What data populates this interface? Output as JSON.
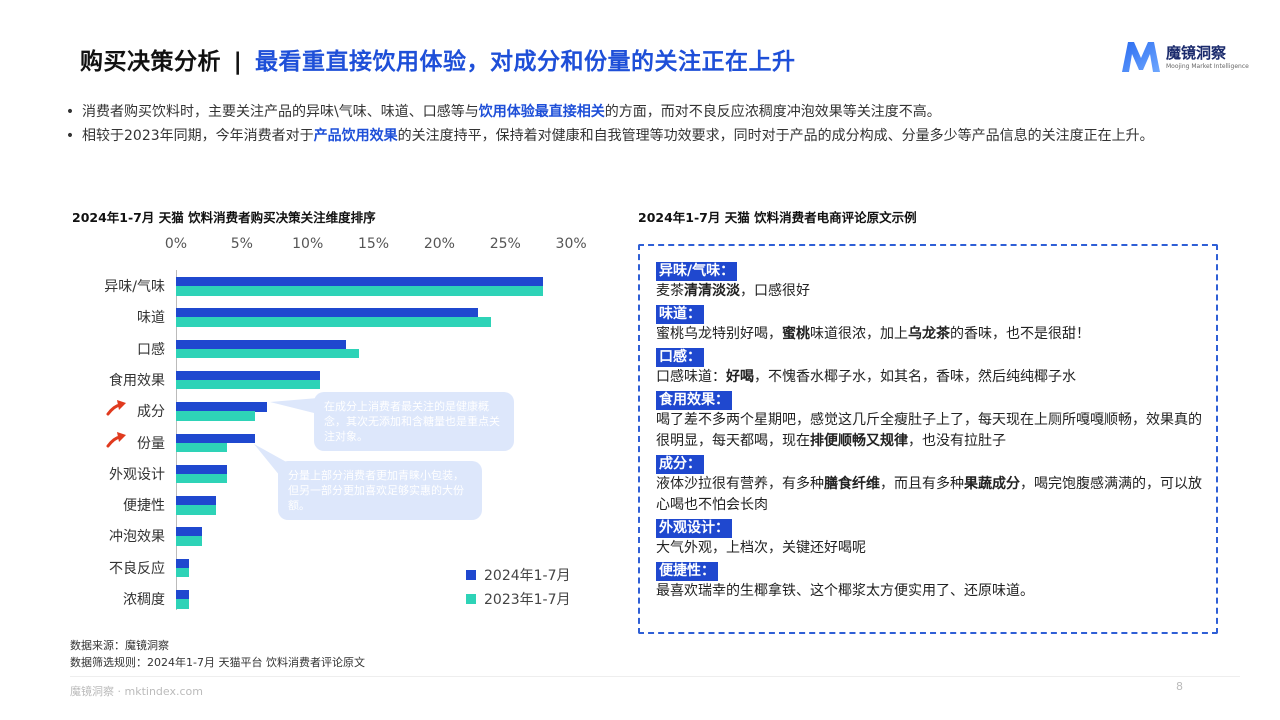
{
  "header": {
    "title_main": "购买决策分析",
    "title_sep": "|",
    "title_highlight": "最看重直接饮用体验，对成分和份量的关注正在上升"
  },
  "logo": {
    "name": "魔镜洞察",
    "slogan": "Moojing Market Intelligence"
  },
  "bullets": [
    {
      "pre": "消费者购买饮料时，主要关注产品的异味\\气味、味道、口感等与",
      "highlight": "饮用体验最直接相关",
      "post": "的方面，而对不良反应浓稠度冲泡效果等关注度不高。"
    },
    {
      "pre": "相较于2023年同期，今年消费者对于",
      "highlight": "产品饮用效果",
      "post": "的关注度持平，保持着对健康和自我管理等功效要求，同时对于产品的成分构成、分量多少等产品信息的关注度正在上升。"
    }
  ],
  "left_panel": {
    "subtitle": "2024年1-7月 天猫 饮料消费者购买决策关注维度排序",
    "callouts": [
      "在成分上消费者最关注的是健康概念，其次无添加和含糖量也是重点关注对象。",
      "分量上部分消费者更加青睐小包装，但另一部分更加喜欢足够实惠的大份额。"
    ]
  },
  "chart_data": {
    "type": "bar",
    "orientation": "horizontal",
    "title": "2024年1-7月 天猫 饮料消费者购买决策关注维度排序",
    "xlabel": "",
    "ylabel": "",
    "x_ticks": [
      "0%",
      "5%",
      "10%",
      "15%",
      "20%",
      "25%",
      "30%"
    ],
    "xlim": [
      0,
      30
    ],
    "grid": false,
    "legend_position": "bottom-right",
    "categories": [
      "异味/气味",
      "味道",
      "口感",
      "食用效果",
      "成分",
      "份量",
      "外观设计",
      "便捷性",
      "冲泡效果",
      "不良反应",
      "浓稠度"
    ],
    "series": [
      {
        "name": "2024年1-7月",
        "color": "#1f48cf",
        "values": [
          27.9,
          22.9,
          12.9,
          10.9,
          6.9,
          6.0,
          3.9,
          3.0,
          2.0,
          1.0,
          1.0
        ]
      },
      {
        "name": "2023年1-7月",
        "color": "#2ed3b7",
        "values": [
          27.9,
          23.9,
          13.9,
          10.9,
          6.0,
          3.9,
          3.9,
          3.0,
          2.0,
          1.0,
          1.0
        ]
      }
    ],
    "annotations": [
      {
        "category": "成分",
        "marker": "rising-arrow"
      },
      {
        "category": "份量",
        "marker": "rising-arrow"
      }
    ]
  },
  "right_panel": {
    "subtitle": "2024年1-7月 天猫 饮料消费者电商评论原文示例",
    "reviews": [
      {
        "tag": "异味/气味：",
        "parts": [
          [
            "麦茶",
            false
          ],
          [
            "清清淡淡",
            true
          ],
          [
            "，口感很好",
            false
          ]
        ]
      },
      {
        "tag": "味道：",
        "parts": [
          [
            "蜜桃乌龙特别好喝，",
            false
          ],
          [
            "蜜桃",
            true
          ],
          [
            "味道很浓，加上",
            false
          ],
          [
            "乌龙茶",
            true
          ],
          [
            "的香味，也不是很甜！",
            false
          ]
        ]
      },
      {
        "tag": "口感：",
        "parts": [
          [
            "口感味道：",
            false
          ],
          [
            "好喝",
            true
          ],
          [
            "，不愧香水椰子水，如其名，香味，然后纯纯椰子水",
            false
          ]
        ]
      },
      {
        "tag": "食用效果：",
        "parts": [
          [
            "喝了差不多两个星期吧，感觉这几斤全瘦肚子上了，每天现在上厕所嘎嘎顺畅，效果真的很明显，每天都喝，现在",
            false
          ],
          [
            "排便顺畅又规律",
            true
          ],
          [
            "，也没有拉肚子",
            false
          ]
        ]
      },
      {
        "tag": "成分：",
        "parts": [
          [
            "液体沙拉很有营养，有多种",
            false
          ],
          [
            "膳食纤维",
            true
          ],
          [
            "，而且有多种",
            false
          ],
          [
            "果蔬成分",
            true
          ],
          [
            "，喝完饱腹感满满的，可以放心喝也不怕会长肉",
            false
          ]
        ]
      },
      {
        "tag": "外观设计：",
        "parts": [
          [
            "大气外观，上档次，关键还好喝呢",
            false
          ]
        ]
      },
      {
        "tag": "便捷性：",
        "parts": [
          [
            "最喜欢瑞幸的生椰拿铁、这个椰浆太方便实用了、还原味道。",
            false
          ]
        ]
      }
    ]
  },
  "source": {
    "line1": "数据来源：魔镜洞察",
    "line2": "数据筛选规则：2024年1-7月 天猫平台 饮料消费者评论原文"
  },
  "footer": {
    "url": "魔镜洞察 · mktindex.com",
    "page": "8"
  }
}
